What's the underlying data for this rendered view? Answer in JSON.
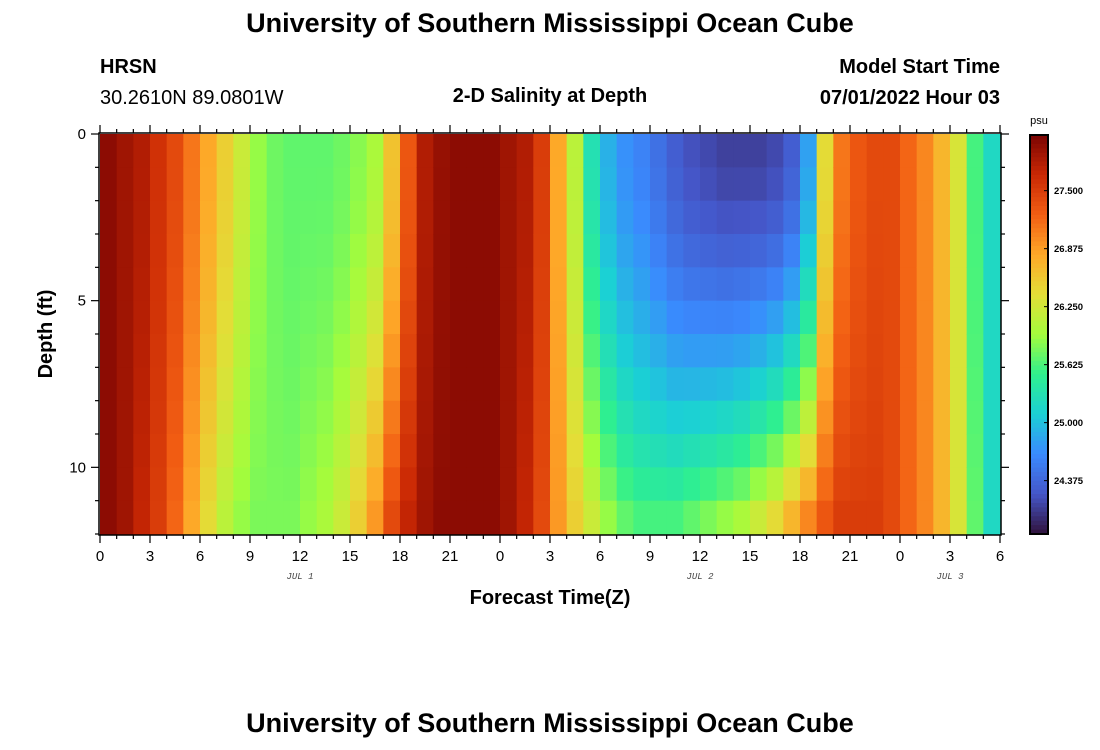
{
  "header": {
    "title": "University of Southern Mississippi Ocean Cube",
    "station": "HRSN",
    "coords": "30.2610N  89.0801W",
    "subtitle": "2-D Salinity at Depth",
    "start_label": "Model Start Time",
    "start_value": "07/01/2022 Hour 03"
  },
  "footer": {
    "title": "University of Southern Mississippi Ocean Cube"
  },
  "chart_data": {
    "type": "heatmap",
    "title": "2-D Salinity at Depth",
    "xlabel": "Forecast Time(Z)",
    "ylabel": "Depth (ft)",
    "ylim": [
      0,
      12
    ],
    "y_ticks": [
      0,
      5,
      10
    ],
    "x_range_hours": [
      0,
      54
    ],
    "x_tick_labels": [
      "0",
      "3",
      "6",
      "9",
      "12",
      "15",
      "18",
      "21",
      "0",
      "3",
      "6",
      "9",
      "12",
      "15",
      "18",
      "21",
      "0",
      "3",
      "6"
    ],
    "date_labels": [
      {
        "label": "JUL 1",
        "hour": 12
      },
      {
        "label": "JUL 2",
        "hour": 36
      },
      {
        "label": "JUL 3",
        "hour": 51
      }
    ],
    "colorbar": {
      "unit": "psu",
      "min": 23.8,
      "max": 28.1,
      "tick_values": [
        27.5,
        26.875,
        26.25,
        25.625,
        25.0,
        24.375
      ],
      "tick_labels": [
        "27.500",
        "26.875",
        "26.250",
        "25.625",
        "25.000",
        "24.375"
      ]
    },
    "time_steps": 54,
    "depth_levels": 12,
    "surface_salinity_by_hour": [
      28.0,
      27.9,
      27.8,
      27.6,
      27.4,
      27.1,
      26.8,
      26.5,
      26.2,
      25.9,
      25.75,
      25.7,
      25.7,
      25.7,
      25.75,
      25.85,
      26.0,
      26.6,
      27.3,
      27.8,
      27.95,
      28.0,
      28.0,
      28.0,
      27.9,
      27.8,
      27.5,
      26.8,
      26.1,
      25.3,
      24.9,
      24.7,
      24.6,
      24.45,
      24.3,
      24.2,
      24.15,
      24.1,
      24.1,
      24.1,
      24.15,
      24.3,
      24.8,
      26.4,
      27.1,
      27.3,
      27.4,
      27.4,
      27.2,
      27.0,
      26.7,
      26.3,
      25.6,
      25.2
    ],
    "bottom_salinity_by_hour": [
      28.0,
      27.9,
      27.7,
      27.5,
      27.2,
      26.8,
      26.4,
      26.1,
      25.9,
      25.8,
      25.8,
      25.8,
      25.9,
      26.0,
      26.2,
      26.5,
      26.9,
      27.4,
      27.7,
      27.9,
      28.0,
      28.0,
      28.0,
      28.0,
      27.9,
      27.7,
      27.4,
      26.9,
      26.5,
      26.2,
      25.9,
      25.7,
      25.6,
      25.6,
      25.6,
      25.7,
      25.8,
      25.9,
      26.0,
      26.2,
      26.4,
      26.7,
      27.0,
      27.3,
      27.5,
      27.5,
      27.5,
      27.4,
      27.2,
      27.0,
      26.7,
      26.3,
      25.7,
      25.2
    ]
  }
}
